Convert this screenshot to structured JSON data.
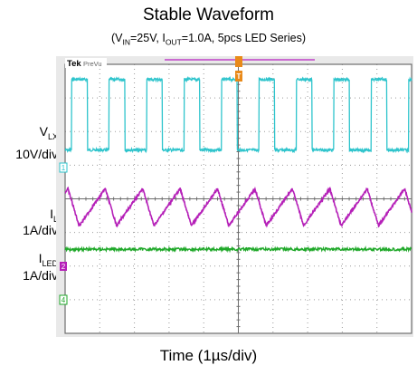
{
  "title": "Stable Waveform",
  "subtitle": {
    "open": "(V",
    "vin_sub": "IN",
    "vin_text": "=25V, I",
    "iout_sub": "OUT",
    "rest": "=1.0A, 5pcs LED Series)"
  },
  "scope": {
    "brand": "Tek",
    "mode": "PreVu",
    "marker_channel_1": "1",
    "marker_channel_2": "2",
    "marker_channel_4": "4",
    "trigger_marker": "T"
  },
  "channels": {
    "vlx": {
      "name_main": "V",
      "name_sub": "LX",
      "scale": "10V/div"
    },
    "il": {
      "name_main": "I",
      "name_sub": "L",
      "scale": "1A/div"
    },
    "iled": {
      "name_main": "I",
      "name_sub": "LED",
      "scale": "1A/div"
    }
  },
  "xlabel": "Time (1µs/div)",
  "colors": {
    "vlx": "#2ec4cc",
    "il": "#b520b8",
    "iled": "#1fa829",
    "grid": "#9a9a9a",
    "frame": "#6e6e6e"
  },
  "chart_data": {
    "type": "line",
    "x_unit": "µs",
    "x_range": [
      0,
      10
    ],
    "period_us": 1.08,
    "series": [
      {
        "name": "VLX",
        "units": "V",
        "scale_per_div": 10,
        "high_div": 2.1,
        "low_div": 0,
        "duty": 0.42
      },
      {
        "name": "IL",
        "units": "A",
        "scale_per_div": 1,
        "min_div": -0.8,
        "max_div": 0.3
      },
      {
        "name": "ILED",
        "units": "A",
        "scale_per_div": 1,
        "level_div": -1.5
      }
    ],
    "grid": true
  }
}
